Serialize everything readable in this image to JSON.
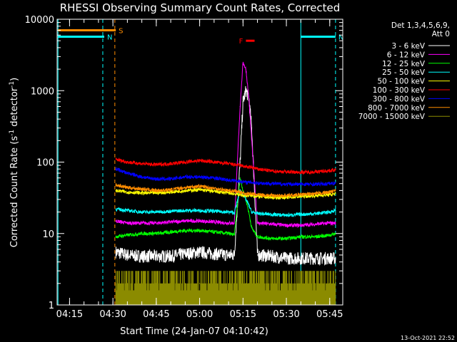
{
  "chart_data": {
    "type": "line",
    "title": "RHESSI Observing Summary Count Rates, Corrected",
    "xlabel": "Start Time (24-Jan-07 04:10:42)",
    "ylabel": "Corrected Count Rate (s⁻¹ detector⁻¹)",
    "ylabel_main": "Corrected Count Rate (s",
    "ylabel_exp1": "-1",
    "ylabel_mid": " detector",
    "ylabel_exp2": "-1",
    "ylabel_end": ")",
    "y_scale": "log",
    "ylim": [
      1,
      10000
    ],
    "xlim": [
      "04:10:42",
      "05:49:30"
    ],
    "x_ticks": [
      "04:15",
      "04:30",
      "04:45",
      "05:00",
      "05:15",
      "05:30",
      "05:45"
    ],
    "y_ticks": [
      "1",
      "10",
      "100",
      "1000",
      "10000"
    ],
    "grid": false,
    "legend_position": "top-right",
    "legend_header": [
      "Det 1,3,4,5,6,9,",
      "Att 0"
    ],
    "series": [
      {
        "name": "3 - 6 keV",
        "color": "#ffffff",
        "x": [
          "04:31",
          "04:35",
          "04:40",
          "04:45",
          "04:50",
          "04:55",
          "05:00",
          "05:05",
          "05:10",
          "05:12",
          "05:14",
          "05:15",
          "05:16",
          "05:17",
          "05:18",
          "05:20",
          "05:25",
          "05:30",
          "05:35",
          "05:40",
          "05:45",
          "05:47"
        ],
        "y": [
          5.5,
          5.0,
          4.8,
          4.8,
          4.8,
          5.2,
          5.5,
          5.2,
          5.0,
          5.0,
          100,
          700,
          1000,
          800,
          300,
          5.0,
          4.8,
          4.5,
          4.5,
          4.5,
          4.5,
          4.5
        ]
      },
      {
        "name": "6 - 12 keV",
        "color": "#ff00ff",
        "x": [
          "04:31",
          "04:35",
          "04:40",
          "04:45",
          "04:50",
          "04:55",
          "05:00",
          "05:05",
          "05:10",
          "05:12",
          "05:14",
          "05:15",
          "05:16",
          "05:17",
          "05:18",
          "05:20",
          "05:25",
          "05:30",
          "05:35",
          "05:40",
          "05:45",
          "05:47"
        ],
        "y": [
          15,
          14,
          14,
          14,
          14.5,
          15,
          15,
          14.5,
          14,
          14,
          600,
          2500,
          2000,
          800,
          200,
          14,
          13.5,
          13,
          13,
          13.5,
          14,
          14
        ]
      },
      {
        "name": "12 - 25 keV",
        "color": "#00ff00",
        "x": [
          "04:31",
          "04:35",
          "04:40",
          "04:45",
          "04:50",
          "04:55",
          "05:00",
          "05:05",
          "05:10",
          "05:12",
          "05:14",
          "05:15",
          "05:16",
          "05:17",
          "05:18",
          "05:20",
          "05:25",
          "05:30",
          "05:35",
          "05:40",
          "05:45",
          "05:47"
        ],
        "y": [
          9.0,
          9.5,
          10,
          10,
          10.5,
          11,
          11,
          10.5,
          10,
          9.5,
          60,
          40,
          30,
          20,
          12,
          9.0,
          8.5,
          8.5,
          9.0,
          9.0,
          9.5,
          10
        ]
      },
      {
        "name": "25 - 50 keV",
        "color": "#00ffff",
        "x": [
          "04:31",
          "04:35",
          "04:40",
          "04:45",
          "04:50",
          "04:55",
          "05:00",
          "05:05",
          "05:10",
          "05:12",
          "05:14",
          "05:15",
          "05:16",
          "05:17",
          "05:18",
          "05:20",
          "05:25",
          "05:30",
          "05:35",
          "05:40",
          "05:45",
          "05:47"
        ],
        "y": [
          22,
          21,
          20,
          20,
          20.5,
          21,
          21,
          20.5,
          20,
          19.5,
          40,
          35,
          30,
          25,
          20,
          19,
          18.5,
          18,
          18.5,
          19,
          20,
          21
        ]
      },
      {
        "name": "50 - 100 keV",
        "color": "#ffff00",
        "x": [
          "04:31",
          "04:35",
          "04:40",
          "04:45",
          "04:50",
          "04:55",
          "05:00",
          "05:05",
          "05:10",
          "05:12",
          "05:14",
          "05:15",
          "05:16",
          "05:17",
          "05:18",
          "05:20",
          "05:25",
          "05:30",
          "05:35",
          "05:40",
          "05:45",
          "05:47"
        ],
        "y": [
          40,
          38,
          37,
          37,
          38,
          40,
          41,
          39,
          37,
          36,
          35,
          34,
          34,
          34,
          34,
          33,
          32,
          32,
          33,
          34,
          35,
          36
        ]
      },
      {
        "name": "100 - 300 keV",
        "color": "#ff0000",
        "x": [
          "04:31",
          "04:35",
          "04:40",
          "04:45",
          "04:50",
          "04:55",
          "05:00",
          "05:05",
          "05:10",
          "05:12",
          "05:14",
          "05:15",
          "05:16",
          "05:17",
          "05:18",
          "05:20",
          "05:25",
          "05:30",
          "05:35",
          "05:40",
          "05:45",
          "05:47"
        ],
        "y": [
          110,
          100,
          95,
          92,
          95,
          100,
          105,
          100,
          95,
          92,
          90,
          88,
          86,
          85,
          84,
          80,
          75,
          73,
          72,
          73,
          76,
          78
        ]
      },
      {
        "name": "300 - 800 keV",
        "color": "#0000ff",
        "x": [
          "04:31",
          "04:35",
          "04:40",
          "04:45",
          "04:50",
          "04:55",
          "05:00",
          "05:05",
          "05:10",
          "05:12",
          "05:14",
          "05:15",
          "05:16",
          "05:17",
          "05:18",
          "05:20",
          "05:25",
          "05:30",
          "05:35",
          "05:40",
          "05:45",
          "05:47"
        ],
        "y": [
          80,
          70,
          62,
          58,
          58,
          62,
          62,
          60,
          56,
          55,
          54,
          53,
          52,
          52,
          52,
          51,
          50,
          49,
          49,
          49,
          50,
          51
        ]
      },
      {
        "name": "800 - 7000 keV",
        "color": "#ff8c00",
        "x": [
          "04:31",
          "04:35",
          "04:40",
          "04:45",
          "04:50",
          "04:55",
          "05:00",
          "05:05",
          "05:10",
          "05:12",
          "05:14",
          "05:15",
          "05:16",
          "05:17",
          "05:18",
          "05:20",
          "05:25",
          "05:30",
          "05:35",
          "05:40",
          "05:45",
          "05:47"
        ],
        "y": [
          48,
          44,
          42,
          40,
          41,
          44,
          46,
          43,
          40,
          39,
          38,
          37,
          36,
          36,
          36,
          35,
          34,
          34,
          35,
          36,
          38,
          40
        ]
      },
      {
        "name": "7000 - 15000 keV",
        "color": "#8b8b00",
        "x": [
          "04:31",
          "04:35",
          "04:40",
          "04:45",
          "04:50",
          "04:55",
          "05:00",
          "05:05",
          "05:10",
          "05:12",
          "05:14",
          "05:15",
          "05:16",
          "05:17",
          "05:18",
          "05:20",
          "05:25",
          "05:30",
          "05:35",
          "05:40",
          "05:45",
          "05:47"
        ],
        "y": [
          2,
          2,
          2,
          2,
          2,
          2,
          2,
          2,
          2,
          2,
          2,
          2,
          2,
          2,
          2,
          2,
          2,
          2,
          2,
          2,
          2,
          2
        ]
      }
    ],
    "annotations": [
      {
        "label": "S",
        "color": "#ff8c00",
        "start": "04:11",
        "end": "04:31",
        "y": 7000
      },
      {
        "label": "N",
        "color": "#00ffff",
        "start": "04:11",
        "end": "04:27",
        "y": 5700
      },
      {
        "label": "F",
        "color": "#ff0000",
        "start": "05:16",
        "end": "05:19",
        "y": 5000
      },
      {
        "label": "N",
        "color": "#00ffff",
        "start": "05:35",
        "end": "05:47",
        "y": 5700
      }
    ],
    "timestamp": "13-Oct-2021 22:52"
  }
}
